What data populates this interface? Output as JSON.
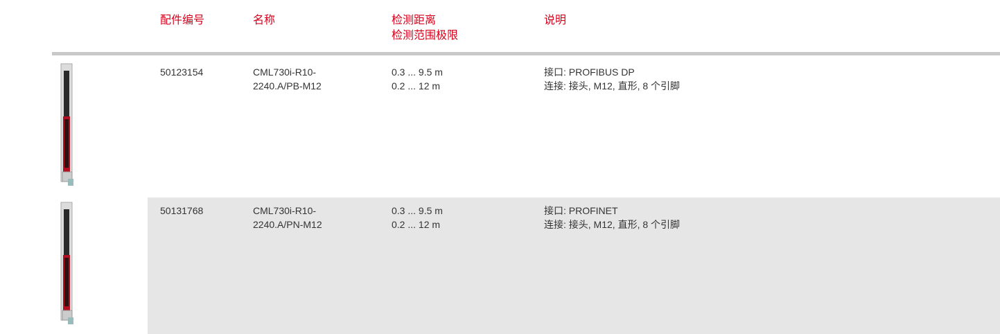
{
  "header": {
    "part_no": "配件编号",
    "name": "名称",
    "range": [
      "检测距离",
      "检测范围极限"
    ],
    "description": "说明"
  },
  "rows": [
    {
      "part_no": "50123154",
      "name": [
        "CML730i-R10-",
        "2240.A/PB-M12"
      ],
      "range": [
        "0.3 ... 9.5 m",
        "0.2 ... 12 m"
      ],
      "description": [
        "接口: PROFIBUS DP",
        "连接: 接头, M12, 直形, 8 个引脚"
      ]
    },
    {
      "part_no": "50131768",
      "name": [
        "CML730i-R10-",
        "2240.A/PN-M12"
      ],
      "range": [
        "0.3 ... 9.5 m",
        "0.2 ... 12 m"
      ],
      "description": [
        "接口: PROFINET",
        "连接: 接头, M12, 直形, 8 个引脚"
      ]
    }
  ]
}
